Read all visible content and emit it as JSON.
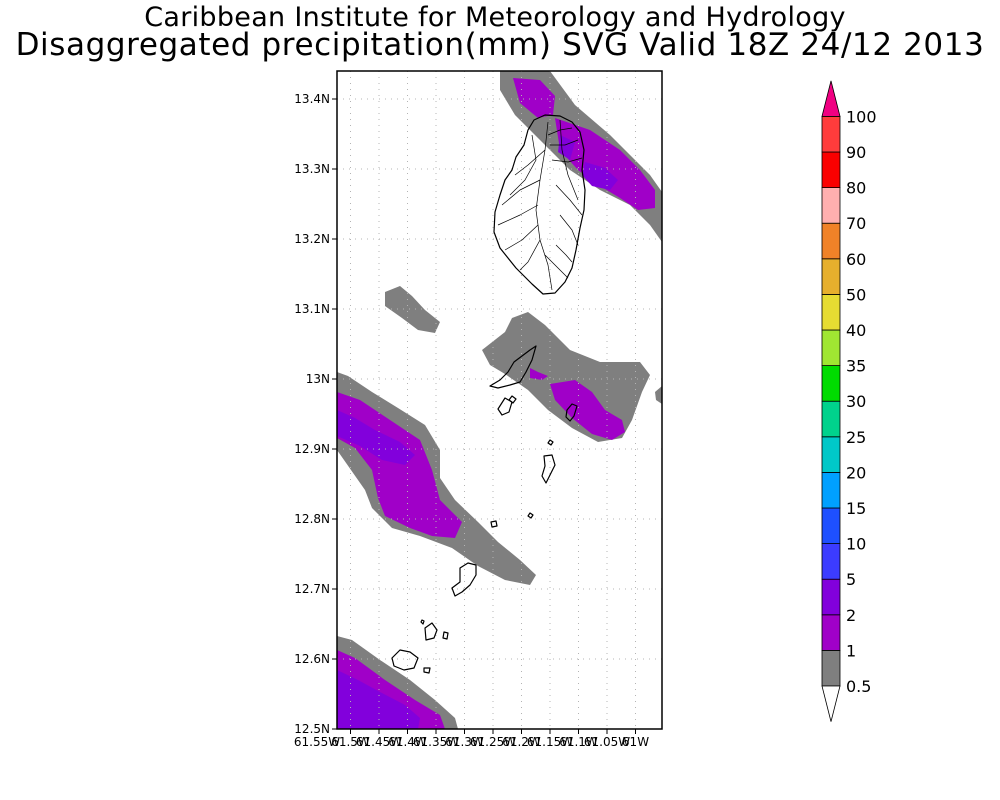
{
  "header": {
    "institute": "Caribbean Institute for Meteorology and Hydrology",
    "product": "Disaggregated precipitation(mm) SVG Valid 18Z 24/12 2013"
  },
  "map": {
    "lat_range": [
      12.5,
      13.44
    ],
    "lon_range": [
      -61.55,
      -60.99
    ],
    "grid": true,
    "lat_ticks": [
      "12.5N",
      "12.6N",
      "12.7N",
      "12.8N",
      "12.9N",
      "13N",
      "13.1N",
      "13.2N",
      "13.3N",
      "13.4N"
    ],
    "lon_ticks": [
      "61.55W",
      "61.5W",
      "61.45W",
      "61.4W",
      "61.35W",
      "61.3W",
      "61.25W",
      "61.2W",
      "61.15W",
      "61.1W",
      "61.05W",
      "61W"
    ]
  },
  "legend": {
    "placement": "right",
    "levels": [
      "0.5",
      "1",
      "2",
      "5",
      "10",
      "15",
      "20",
      "25",
      "30",
      "35",
      "40",
      "50",
      "60",
      "70",
      "80",
      "90",
      "100"
    ],
    "colors": [
      "#7f7f7f",
      "#a000c8",
      "#8200dc",
      "#3c3cff",
      "#1e50ff",
      "#00a0ff",
      "#00c8c8",
      "#00d28c",
      "#00dc00",
      "#a0e632",
      "#e6dc32",
      "#e6af2d",
      "#f08228",
      "#ffafaf",
      "#fa0000",
      "#ff3c3c",
      "#f00082"
    ]
  },
  "colors": {
    "light_rain": "#7f7f7f",
    "moderate_rain": "#a000c8",
    "heavier_rain": "#8200dc",
    "coastline": "#000000",
    "grid": "#b4b4b4"
  }
}
